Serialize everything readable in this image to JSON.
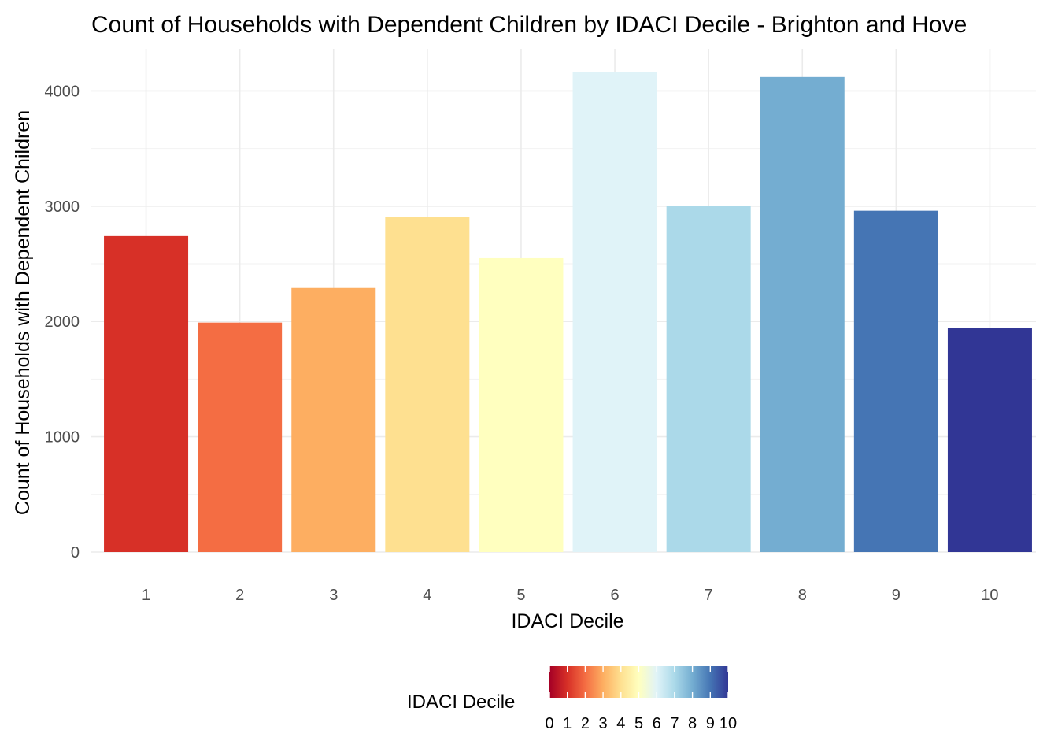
{
  "chart_data": {
    "type": "bar",
    "title": "Count of Households with Dependent Children by IDACI Decile - Brighton and Hove",
    "xlabel": "IDACI Decile",
    "ylabel": "Count of Households with Dependent Children",
    "categories": [
      "1",
      "2",
      "3",
      "4",
      "5",
      "6",
      "7",
      "8",
      "9",
      "10"
    ],
    "values": [
      2740,
      1990,
      2290,
      2905,
      2555,
      4160,
      3005,
      4120,
      2960,
      1940
    ],
    "ylim": [
      0,
      4300
    ],
    "yticks": [
      0,
      1000,
      2000,
      3000,
      4000
    ],
    "ytick_labels": [
      "0",
      "1000",
      "2000",
      "3000",
      "4000"
    ],
    "bar_colors": [
      "#d73027",
      "#f46d43",
      "#fdae61",
      "#fee090",
      "#ffffbf",
      "#e0f3f8",
      "#abd9e9",
      "#74add1",
      "#4575b4",
      "#313695"
    ],
    "grid": true,
    "legend": {
      "title": "IDACI Decile",
      "placement": "bottom",
      "type": "colorbar",
      "range": [
        0,
        10
      ],
      "tick_labels": [
        "0",
        "1",
        "2",
        "3",
        "4",
        "5",
        "6",
        "7",
        "8",
        "9",
        "10"
      ],
      "gradient_colors": [
        "#a50026",
        "#d73027",
        "#f46d43",
        "#fdae61",
        "#fee090",
        "#ffffbf",
        "#e0f3f8",
        "#abd9e9",
        "#74add1",
        "#4575b4",
        "#313695"
      ]
    }
  }
}
